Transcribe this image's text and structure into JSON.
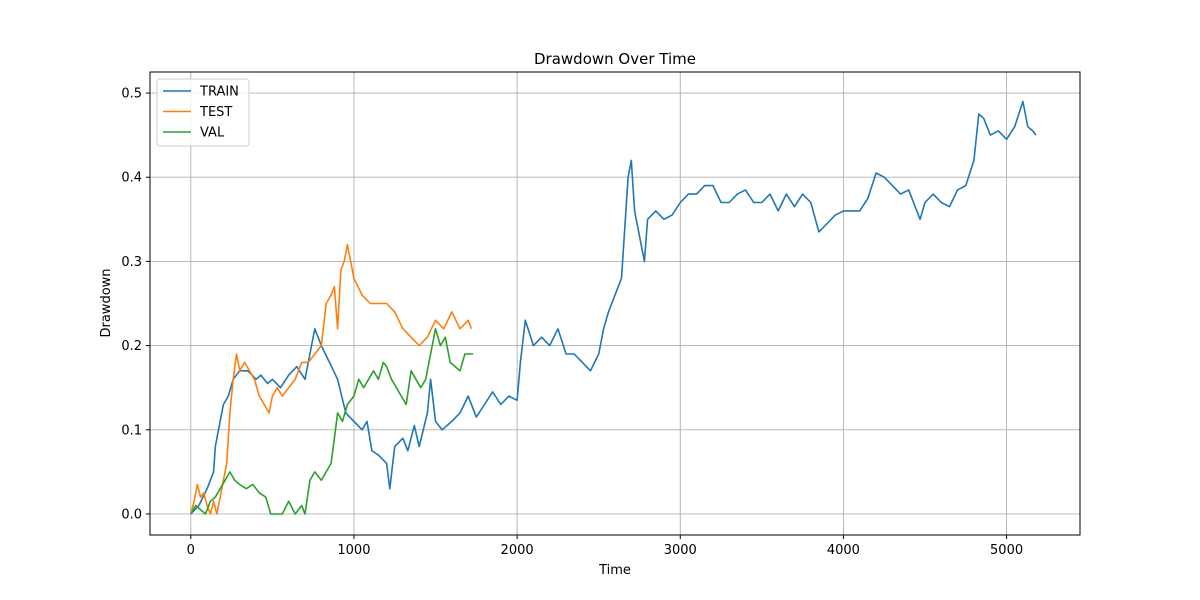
{
  "chart_data": {
    "type": "line",
    "title": "Drawdown Over Time",
    "xlabel": "Time",
    "ylabel": "Drawdown",
    "xlim": [
      -250,
      5450
    ],
    "ylim": [
      -0.025,
      0.525
    ],
    "xticks": [
      0,
      1000,
      2000,
      3000,
      4000,
      5000
    ],
    "xtick_labels": [
      "0",
      "1000",
      "2000",
      "3000",
      "4000",
      "5000"
    ],
    "yticks": [
      0.0,
      0.1,
      0.2,
      0.3,
      0.4,
      0.5
    ],
    "ytick_labels": [
      "0.0",
      "0.1",
      "0.2",
      "0.3",
      "0.4",
      "0.5"
    ],
    "grid": true,
    "legend_position": "upper-left",
    "series": [
      {
        "name": "TRAIN",
        "color": "#1f77b4",
        "x": [
          0,
          50,
          100,
          140,
          150,
          170,
          200,
          230,
          260,
          300,
          350,
          400,
          430,
          470,
          500,
          550,
          600,
          650,
          700,
          730,
          760,
          800,
          850,
          900,
          950,
          1000,
          1050,
          1080,
          1110,
          1150,
          1200,
          1220,
          1250,
          1300,
          1330,
          1370,
          1400,
          1450,
          1470,
          1500,
          1540,
          1600,
          1650,
          1700,
          1750,
          1800,
          1850,
          1900,
          1950,
          2000,
          2020,
          2050,
          2100,
          2150,
          2200,
          2250,
          2300,
          2350,
          2400,
          2450,
          2500,
          2530,
          2560,
          2600,
          2640,
          2680,
          2700,
          2720,
          2750,
          2780,
          2800,
          2850,
          2900,
          2950,
          3000,
          3050,
          3100,
          3150,
          3200,
          3250,
          3300,
          3350,
          3400,
          3450,
          3500,
          3550,
          3600,
          3650,
          3700,
          3750,
          3800,
          3850,
          3900,
          3950,
          4000,
          4050,
          4100,
          4150,
          4200,
          4250,
          4300,
          4350,
          4400,
          4450,
          4470,
          4500,
          4550,
          4600,
          4650,
          4700,
          4750,
          4800,
          4830,
          4860,
          4900,
          4950,
          5000,
          5050,
          5100,
          5130,
          5160,
          5180
        ],
        "values": [
          0.0,
          0.01,
          0.03,
          0.05,
          0.08,
          0.1,
          0.13,
          0.14,
          0.16,
          0.17,
          0.17,
          0.16,
          0.165,
          0.155,
          0.16,
          0.15,
          0.165,
          0.175,
          0.16,
          0.19,
          0.22,
          0.2,
          0.18,
          0.16,
          0.12,
          0.11,
          0.1,
          0.11,
          0.075,
          0.07,
          0.06,
          0.03,
          0.08,
          0.09,
          0.075,
          0.105,
          0.08,
          0.12,
          0.16,
          0.11,
          0.1,
          0.11,
          0.12,
          0.14,
          0.115,
          0.13,
          0.145,
          0.13,
          0.14,
          0.135,
          0.18,
          0.23,
          0.2,
          0.21,
          0.2,
          0.22,
          0.19,
          0.19,
          0.18,
          0.17,
          0.19,
          0.22,
          0.24,
          0.26,
          0.28,
          0.4,
          0.42,
          0.36,
          0.33,
          0.3,
          0.35,
          0.36,
          0.35,
          0.355,
          0.37,
          0.38,
          0.38,
          0.39,
          0.39,
          0.37,
          0.37,
          0.38,
          0.385,
          0.37,
          0.37,
          0.38,
          0.36,
          0.38,
          0.365,
          0.38,
          0.37,
          0.335,
          0.345,
          0.355,
          0.36,
          0.36,
          0.36,
          0.375,
          0.405,
          0.4,
          0.39,
          0.38,
          0.385,
          0.36,
          0.35,
          0.37,
          0.38,
          0.37,
          0.365,
          0.385,
          0.39,
          0.42,
          0.475,
          0.47,
          0.45,
          0.455,
          0.445,
          0.46,
          0.49,
          0.46,
          0.455,
          0.45
        ]
      },
      {
        "name": "TEST",
        "color": "#ff7f0e",
        "x": [
          0,
          20,
          40,
          60,
          80,
          100,
          120,
          140,
          160,
          180,
          200,
          220,
          240,
          260,
          280,
          300,
          330,
          360,
          390,
          420,
          450,
          480,
          500,
          530,
          560,
          600,
          640,
          680,
          720,
          760,
          800,
          830,
          860,
          880,
          900,
          920,
          940,
          960,
          1000,
          1050,
          1100,
          1150,
          1200,
          1250,
          1300,
          1350,
          1400,
          1450,
          1500,
          1550,
          1600,
          1650,
          1700,
          1720
        ],
        "values": [
          0.0,
          0.015,
          0.035,
          0.02,
          0.025,
          0.01,
          0.0,
          0.015,
          0.0,
          0.02,
          0.04,
          0.06,
          0.12,
          0.16,
          0.19,
          0.17,
          0.18,
          0.17,
          0.16,
          0.14,
          0.13,
          0.12,
          0.14,
          0.15,
          0.14,
          0.15,
          0.16,
          0.18,
          0.18,
          0.19,
          0.2,
          0.25,
          0.26,
          0.27,
          0.22,
          0.29,
          0.3,
          0.32,
          0.28,
          0.26,
          0.25,
          0.25,
          0.25,
          0.24,
          0.22,
          0.21,
          0.2,
          0.21,
          0.23,
          0.22,
          0.24,
          0.22,
          0.23,
          0.22
        ]
      },
      {
        "name": "VAL",
        "color": "#2ca02c",
        "x": [
          0,
          30,
          60,
          90,
          120,
          150,
          180,
          210,
          240,
          270,
          300,
          340,
          380,
          420,
          460,
          490,
          520,
          560,
          600,
          640,
          680,
          700,
          730,
          760,
          800,
          830,
          860,
          880,
          900,
          930,
          960,
          1000,
          1030,
          1060,
          1090,
          1120,
          1150,
          1180,
          1200,
          1230,
          1260,
          1290,
          1320,
          1350,
          1380,
          1410,
          1440,
          1470,
          1500,
          1530,
          1560,
          1590,
          1620,
          1650,
          1680,
          1710,
          1730
        ],
        "values": [
          0.0,
          0.01,
          0.005,
          0.0,
          0.015,
          0.02,
          0.03,
          0.04,
          0.05,
          0.04,
          0.035,
          0.03,
          0.035,
          0.025,
          0.02,
          0.0,
          0.0,
          0.0,
          0.015,
          0.0,
          0.01,
          0.0,
          0.04,
          0.05,
          0.04,
          0.05,
          0.06,
          0.09,
          0.12,
          0.11,
          0.13,
          0.14,
          0.16,
          0.15,
          0.16,
          0.17,
          0.16,
          0.18,
          0.175,
          0.16,
          0.15,
          0.14,
          0.13,
          0.17,
          0.16,
          0.15,
          0.16,
          0.19,
          0.22,
          0.2,
          0.21,
          0.18,
          0.175,
          0.17,
          0.19,
          0.19,
          0.19
        ]
      }
    ]
  }
}
